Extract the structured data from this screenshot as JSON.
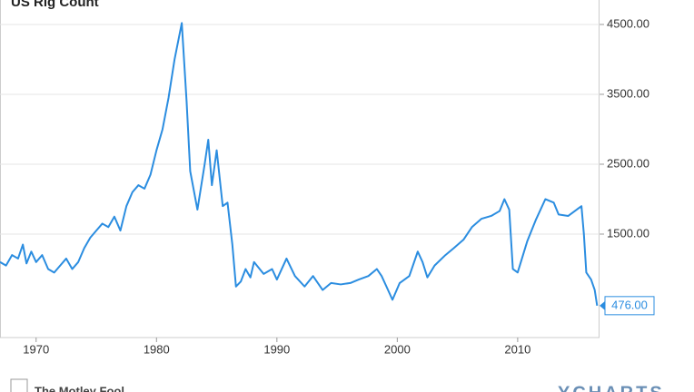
{
  "chart_data": {
    "type": "line",
    "title": "US Rig Count",
    "x": [
      1967.0,
      1967.5,
      1968.0,
      1968.5,
      1968.9,
      1969.2,
      1969.6,
      1970.0,
      1970.5,
      1971.0,
      1971.5,
      1972.0,
      1972.5,
      1973.0,
      1973.5,
      1974.0,
      1974.5,
      1975.0,
      1975.5,
      1976.0,
      1976.5,
      1977.0,
      1977.5,
      1978.0,
      1978.5,
      1979.0,
      1979.5,
      1980.0,
      1980.5,
      1981.0,
      1981.5,
      1982.1,
      1982.5,
      1982.8,
      1983.4,
      1984.0,
      1984.3,
      1984.6,
      1985.0,
      1985.5,
      1985.9,
      1986.3,
      1986.6,
      1987.0,
      1987.4,
      1987.8,
      1988.1,
      1988.9,
      1989.6,
      1990.0,
      1990.8,
      1991.5,
      1992.3,
      1993.0,
      1993.8,
      1994.5,
      1995.3,
      1996.1,
      1996.8,
      1997.6,
      1998.3,
      1998.7,
      1999.1,
      1999.6,
      2000.2,
      2001.0,
      2001.7,
      2002.1,
      2002.5,
      2003.1,
      2004.0,
      2004.7,
      2005.5,
      2006.2,
      2007.0,
      2007.8,
      2008.5,
      2008.9,
      2009.3,
      2009.6,
      2010.0,
      2010.8,
      2011.5,
      2012.3,
      2013.0,
      2013.4,
      2014.2,
      2014.9,
      2015.3,
      2015.5,
      2015.7,
      2016.1,
      2016.4,
      2016.6
    ],
    "series": [
      {
        "name": "US Rig Count",
        "color": "#2b8de0",
        "values": [
          1100,
          1050,
          1200,
          1150,
          1350,
          1080,
          1250,
          1100,
          1200,
          1000,
          950,
          1050,
          1150,
          1000,
          1100,
          1300,
          1450,
          1550,
          1650,
          1600,
          1750,
          1550,
          1900,
          2100,
          2200,
          2150,
          2350,
          2700,
          3000,
          3450,
          4000,
          4520,
          3400,
          2400,
          1850,
          2500,
          2850,
          2200,
          2700,
          1900,
          1950,
          1350,
          750,
          820,
          1000,
          880,
          1100,
          930,
          1000,
          850,
          1150,
          900,
          750,
          900,
          700,
          800,
          780,
          800,
          850,
          900,
          1000,
          900,
          750,
          560,
          800,
          900,
          1250,
          1100,
          880,
          1050,
          1200,
          1300,
          1420,
          1600,
          1720,
          1760,
          1830,
          2000,
          1850,
          1000,
          950,
          1400,
          1700,
          2000,
          1950,
          1780,
          1760,
          1850,
          1900,
          1500,
          950,
          850,
          700,
          476
        ]
      }
    ],
    "end_label": {
      "value": 476,
      "label": "476.00"
    },
    "xlim": [
      1967,
      2016.8
    ],
    "xticks": [
      1970,
      1980,
      1990,
      2000,
      2010
    ],
    "ylim": [
      0,
      4850
    ],
    "yticks": [
      {
        "value": 1500,
        "label": "1500.00"
      },
      {
        "value": 2500,
        "label": "2500.00"
      },
      {
        "value": 3500,
        "label": "3500.00"
      },
      {
        "value": 4500,
        "label": "4500.00"
      }
    ],
    "grid": true,
    "footer_left": "The Motley Fool",
    "footer_right": "YCHARTS"
  }
}
